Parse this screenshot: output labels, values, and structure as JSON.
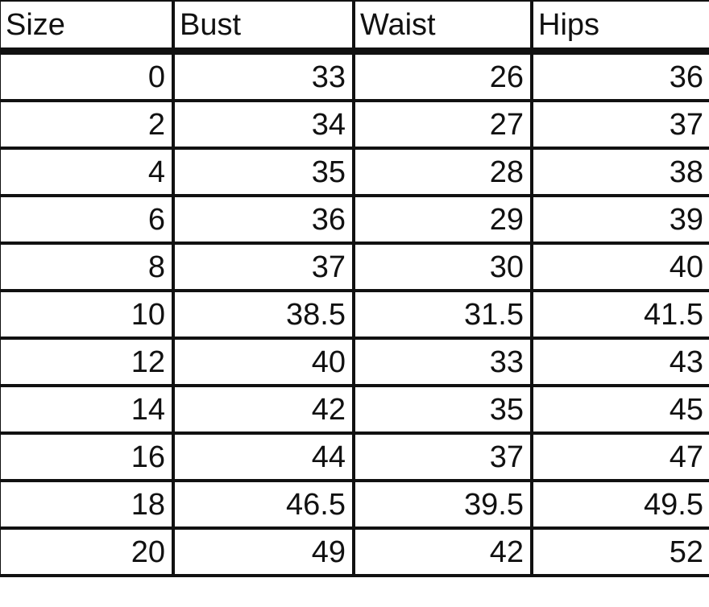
{
  "table": {
    "headers": [
      "Size",
      "Bust",
      "Waist",
      "Hips"
    ],
    "rows": [
      [
        "0",
        "33",
        "26",
        "36"
      ],
      [
        "2",
        "34",
        "27",
        "37"
      ],
      [
        "4",
        "35",
        "28",
        "38"
      ],
      [
        "6",
        "36",
        "29",
        "39"
      ],
      [
        "8",
        "37",
        "30",
        "40"
      ],
      [
        "10",
        "38.5",
        "31.5",
        "41.5"
      ],
      [
        "12",
        "40",
        "33",
        "43"
      ],
      [
        "14",
        "42",
        "35",
        "45"
      ],
      [
        "16",
        "44",
        "37",
        "47"
      ],
      [
        "18",
        "46.5",
        "39.5",
        "49.5"
      ],
      [
        "20",
        "49",
        "42",
        "52"
      ]
    ]
  }
}
